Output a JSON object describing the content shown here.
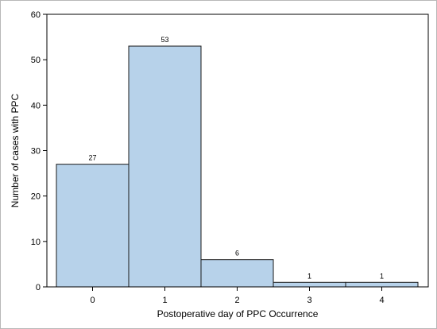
{
  "chart_data": {
    "type": "bar",
    "categories": [
      "0",
      "1",
      "2",
      "3",
      "4"
    ],
    "values": [
      27,
      53,
      6,
      1,
      1
    ],
    "data_labels": [
      "27",
      "53",
      "6",
      "1",
      "1"
    ],
    "title": "",
    "xlabel": "Postoperative day of PPC Occurrence",
    "ylabel": "Number of cases with PPC",
    "ylim": [
      0,
      60
    ],
    "yticks": [
      0,
      10,
      20,
      30,
      40,
      50,
      60
    ],
    "grid": false,
    "legend": "none",
    "colors": {
      "bar_fill": "#b7d2ea",
      "bar_stroke": "#1a1a1a",
      "axis": "#000000"
    }
  }
}
